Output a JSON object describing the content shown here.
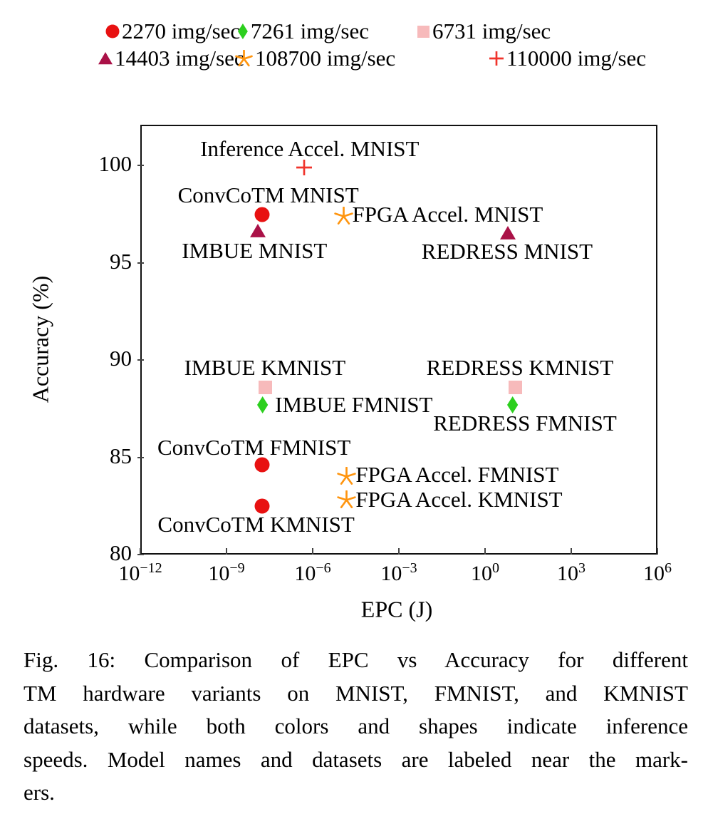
{
  "legend": {
    "rows": [
      [
        {
          "marker": "circle",
          "color": "#e81111",
          "label": "2270 img/sec"
        },
        {
          "marker": "diamond",
          "color": "#2ccf1e",
          "label": "7261 img/sec"
        },
        {
          "marker": "square",
          "color": "#f7babb",
          "label": "6731 img/sec"
        }
      ],
      [
        {
          "marker": "triangle",
          "color": "#aa1147",
          "label": "14403 img/sec"
        },
        {
          "marker": "star",
          "color": "#ff950f",
          "label": "108700 img/sec"
        },
        {
          "marker": "plus",
          "color": "#f0342c",
          "label": "110000 img/sec"
        }
      ]
    ]
  },
  "chart_data": {
    "type": "scatter",
    "xlabel": "EPC (J)",
    "ylabel": "Accuracy (%)",
    "x_scale": "log10",
    "xlim_exponents": [
      -12,
      6
    ],
    "x_tick_exponents": [
      -12,
      -9,
      -6,
      -3,
      0,
      3,
      6
    ],
    "ylim": [
      80,
      102.1
    ],
    "y_ticks": [
      80,
      85,
      90,
      95,
      100
    ],
    "grid": true,
    "legend_position": "top-center",
    "series": [
      {
        "name": "2270 img/sec",
        "marker": "circle",
        "color": "#e81111",
        "points": [
          {
            "label": "ConvCoTM MNIST",
            "x": 1.7e-08,
            "y": 97.5,
            "lp": {
              "dx": 9,
              "dy": -27,
              "anchor": "center"
            }
          },
          {
            "label": "ConvCoTM FMNIST",
            "x": 1.7e-08,
            "y": 84.6,
            "lp": {
              "dx": -11,
              "dy": -24,
              "anchor": "center"
            }
          },
          {
            "label": "ConvCoTM KMNIST",
            "x": 1.7e-08,
            "y": 82.5,
            "lp": {
              "dx": -8,
              "dy": 26,
              "anchor": "center"
            }
          }
        ]
      },
      {
        "name": "7261 img/sec",
        "marker": "diamond",
        "color": "#2ccf1e",
        "points": [
          {
            "label": "IMBUE FMNIST",
            "x": 2.2e-08,
            "y": 87.7,
            "lp": {
              "dx": 14,
              "dy": 0,
              "anchor": "left"
            }
          },
          {
            "label": "REDRESS FMNIST",
            "x": 11,
            "y": 87.7,
            "lp": {
              "dx": 14,
              "dy": 26,
              "anchor": "center"
            }
          }
        ]
      },
      {
        "name": "6731 img/sec",
        "marker": "square",
        "color": "#f7babb",
        "points": [
          {
            "label": "IMBUE KMNIST",
            "x": 2.3e-08,
            "y": 88.6,
            "lp": {
              "dx": -1,
              "dy": -27,
              "anchor": "center"
            }
          },
          {
            "label": "REDRESS KMNIST",
            "x": 11,
            "y": 88.6,
            "lp": {
              "dx": 7,
              "dy": -27,
              "anchor": "center"
            }
          }
        ]
      },
      {
        "name": "14403 img/sec",
        "marker": "triangle",
        "color": "#aa1147",
        "points": [
          {
            "label": "IMBUE MNIST",
            "x": 1.25e-08,
            "y": 96.6,
            "lp": {
              "dx": -5,
              "dy": 27,
              "anchor": "center"
            }
          },
          {
            "label": "REDRESS MNIST",
            "x": 6.2,
            "y": 96.5,
            "lp": {
              "dx": -1,
              "dy": 25,
              "anchor": "center"
            }
          }
        ]
      },
      {
        "name": "108700 img/sec",
        "marker": "star",
        "color": "#ff950f",
        "points": [
          {
            "label": "FPGA Accel. MNIST",
            "x": 1.2e-05,
            "y": 97.4,
            "lp": {
              "dx": 12,
              "dy": -2,
              "anchor": "left"
            }
          },
          {
            "label": "FPGA Accel. FMNIST",
            "x": 1.5e-05,
            "y": 84.0,
            "lp": {
              "dx": 13,
              "dy": -3,
              "anchor": "left"
            }
          },
          {
            "label": "FPGA Accel. KMNIST",
            "x": 1.5e-05,
            "y": 82.8,
            "lp": {
              "dx": 13,
              "dy": -1,
              "anchor": "left"
            }
          }
        ]
      },
      {
        "name": "110000 img/sec",
        "marker": "plus",
        "color": "#f0342c",
        "points": [
          {
            "label": "Inference Accel. MNIST",
            "x": 5e-07,
            "y": 99.9,
            "lp": {
              "dx": 8,
              "dy": -26,
              "anchor": "center"
            }
          }
        ]
      }
    ]
  },
  "caption": {
    "lines": [
      "Fig. 16: Comparison of EPC vs Accuracy for different",
      "TM hardware variants on MNIST, FMNIST, and KMNIST",
      "datasets, while both colors and shapes indicate inference",
      "speeds. Model names and datasets are labeled near the mark-",
      "ers."
    ],
    "text": "Fig. 16: Comparison of EPC vs Accuracy for different TM hardware variants on MNIST, FMNIST, and KMNIST datasets, while both colors and shapes indicate inference speeds. Model names and datasets are labeled near the markers."
  }
}
